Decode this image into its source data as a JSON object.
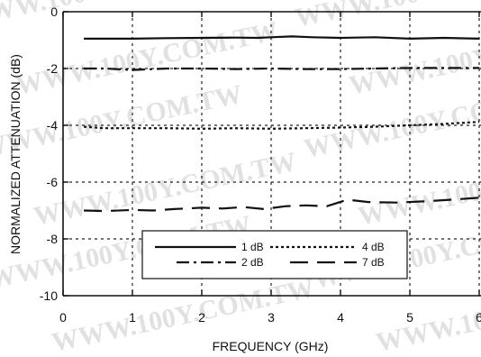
{
  "watermark": "WWW.100Y.COM.TW",
  "chart_data": {
    "type": "line",
    "title": "",
    "xlabel": "FREQUENCY (GHz)",
    "ylabel": "NORMALIZED ATTENUATION (dB)",
    "xlim": [
      0,
      6
    ],
    "ylim": [
      -10,
      0
    ],
    "xticks": [
      0,
      1,
      2,
      3,
      4,
      5,
      6
    ],
    "yticks": [
      0,
      -2,
      -4,
      -6,
      -8,
      -10
    ],
    "xtick_labels": [
      "0",
      "1",
      "2",
      "3",
      "4",
      "5",
      "6"
    ],
    "ytick_labels": [
      "0",
      "-2",
      "-4",
      "-6",
      "-8",
      "-10"
    ],
    "grid": true,
    "legend_position": "bottom-center",
    "series": [
      {
        "name": "1 dB",
        "style": "solid",
        "x": [
          0.3,
          0.6,
          1.0,
          1.5,
          2.0,
          2.5,
          2.8,
          3.0,
          3.3,
          3.6,
          4.0,
          4.5,
          5.0,
          5.5,
          6.0
        ],
        "y": [
          -0.95,
          -0.95,
          -0.95,
          -0.93,
          -0.92,
          -0.91,
          -0.92,
          -0.9,
          -0.87,
          -0.9,
          -0.92,
          -0.9,
          -0.95,
          -0.92,
          -0.95
        ]
      },
      {
        "name": "2 dB",
        "style": "dash-dot",
        "x": [
          0.3,
          0.6,
          1.0,
          1.5,
          2.0,
          2.5,
          3.0,
          3.5,
          4.0,
          4.5,
          5.0,
          5.5,
          6.0
        ],
        "y": [
          -2.0,
          -2.0,
          -2.05,
          -2.0,
          -2.0,
          -2.02,
          -2.0,
          -2.02,
          -2.02,
          -2.0,
          -1.98,
          -1.98,
          -1.98
        ]
      },
      {
        "name": "4 dB",
        "style": "dotted",
        "x": [
          0.3,
          0.6,
          1.0,
          1.5,
          2.0,
          2.5,
          3.0,
          3.5,
          4.0,
          4.5,
          5.0,
          5.5,
          6.0
        ],
        "y": [
          -4.05,
          -4.1,
          -4.1,
          -4.1,
          -4.12,
          -4.1,
          -4.12,
          -4.1,
          -4.08,
          -4.05,
          -4.0,
          -3.95,
          -3.88
        ]
      },
      {
        "name": "7 dB",
        "style": "long-dash",
        "x": [
          0.3,
          0.6,
          1.0,
          1.3,
          1.6,
          2.0,
          2.3,
          2.6,
          2.9,
          3.2,
          3.5,
          3.8,
          4.1,
          4.4,
          4.8,
          5.2,
          5.6,
          6.0
        ],
        "y": [
          -7.0,
          -7.02,
          -6.98,
          -7.0,
          -6.95,
          -6.9,
          -6.93,
          -6.88,
          -6.95,
          -6.85,
          -6.82,
          -6.85,
          -6.62,
          -6.7,
          -6.72,
          -6.68,
          -6.62,
          -6.55
        ]
      }
    ]
  }
}
